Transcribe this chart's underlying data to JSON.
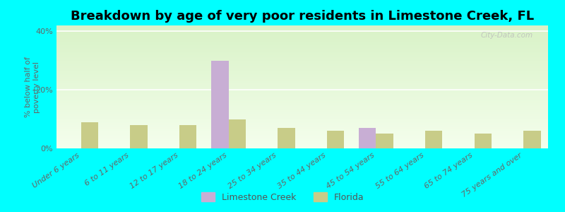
{
  "title": "Breakdown by age of very poor residents in Limestone Creek, FL",
  "ylabel": "% below half of\npoverty level",
  "categories": [
    "Under 6 years",
    "6 to 11 years",
    "12 to 17 years",
    "18 to 24 years",
    "25 to 34 years",
    "35 to 44 years",
    "45 to 54 years",
    "55 to 64 years",
    "65 to 74 years",
    "75 years and over"
  ],
  "limestone_creek": [
    0,
    0,
    0,
    30,
    0,
    0,
    7,
    0,
    0,
    0
  ],
  "florida": [
    9,
    8,
    8,
    10,
    7,
    6,
    5,
    6,
    5,
    6
  ],
  "ylim": [
    0,
    42
  ],
  "yticks": [
    0,
    20,
    40
  ],
  "ytick_labels": [
    "0%",
    "20%",
    "40%"
  ],
  "limestone_color": "#c8aed4",
  "florida_color": "#c8cc88",
  "background_top": "#f5faf0",
  "background_bottom": "#dff0d8",
  "outer_background": "#00ffff",
  "bar_width": 0.35,
  "title_fontsize": 13,
  "axis_label_fontsize": 8,
  "tick_fontsize": 8,
  "legend_fontsize": 9
}
